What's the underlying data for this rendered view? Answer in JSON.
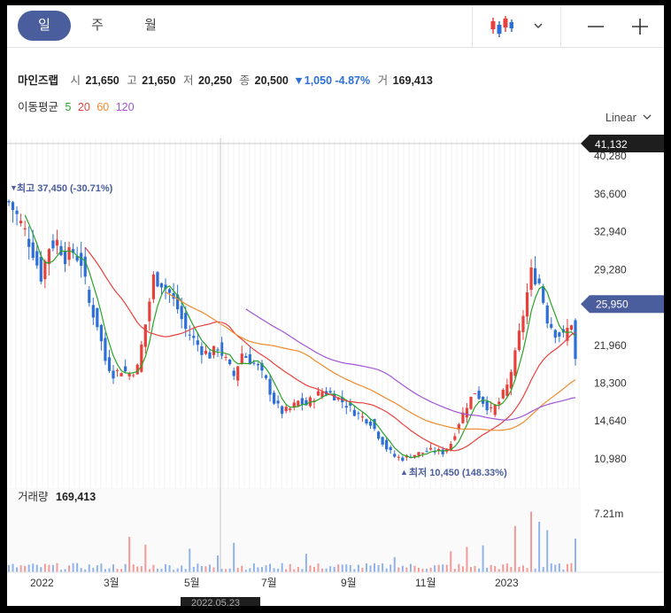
{
  "toolbar": {
    "period_tabs": [
      "일",
      "주",
      "월"
    ],
    "active_tab": 0,
    "chart_type_icon": "candlestick-icon",
    "dropdown_icon": "chevron-down-icon",
    "zoom_out_icon": "minus-icon",
    "zoom_in_icon": "plus-icon"
  },
  "stock": {
    "name": "마인즈랩",
    "open_label": "시",
    "open": "21,650",
    "high_label": "고",
    "high": "21,650",
    "low_label": "저",
    "low": "20,250",
    "close_label": "종",
    "close": "20,500",
    "change": "▼1,050 -4.87%",
    "volume_label": "거",
    "volume": "169,413"
  },
  "moving_average": {
    "label": "이동평균",
    "periods": [
      {
        "value": "5",
        "color": "#29a329"
      },
      {
        "value": "20",
        "color": "#e8413c"
      },
      {
        "value": "60",
        "color": "#f08a2c"
      },
      {
        "value": "120",
        "color": "#a155d6"
      }
    ]
  },
  "scale": {
    "label": "Linear"
  },
  "crosshair": {
    "price_label": "41,132",
    "date_label": "2022.05.23"
  },
  "current_price_label": "25,950",
  "volume_panel": {
    "label": "거래량",
    "value": "169,413",
    "max_label": "7.21m"
  },
  "colors": {
    "up": "#e8413c",
    "down": "#2d6fd6",
    "accent": "#4a5d9c",
    "crosshair_tag": "#1e1e1e"
  },
  "chart_data": {
    "type": "candlestick",
    "ylim": [
      9000,
      42000
    ],
    "y_ticks": [
      "40,280",
      "36,600",
      "32,940",
      "29,280",
      "25,620",
      "21,960",
      "18,300",
      "14,640",
      "10,980"
    ],
    "y_tick_values": [
      40280,
      36600,
      32940,
      29280,
      25620,
      21960,
      18300,
      14640,
      10980
    ],
    "x_labels": [
      "2022",
      "3월",
      "5월",
      "7월",
      "9월",
      "11월",
      "2023"
    ],
    "high_annotation": "최고 37,450 (-30.71%)",
    "low_annotation": "최저 10,450 (148.33%)",
    "high": 37450,
    "low": 10450,
    "close_path": [
      [
        0,
        35800
      ],
      [
        2,
        34500
      ],
      [
        4,
        33000
      ],
      [
        6,
        31000
      ],
      [
        8,
        28600
      ],
      [
        10,
        31500
      ],
      [
        12,
        32000
      ],
      [
        14,
        30500
      ],
      [
        16,
        31000
      ],
      [
        18,
        30000
      ],
      [
        20,
        26000
      ],
      [
        22,
        24000
      ],
      [
        24,
        20500
      ],
      [
        26,
        19200
      ],
      [
        28,
        19600
      ],
      [
        30,
        19200
      ],
      [
        32,
        19800
      ],
      [
        34,
        24000
      ],
      [
        36,
        28500
      ],
      [
        38,
        28000
      ],
      [
        40,
        27000
      ],
      [
        42,
        25500
      ],
      [
        44,
        23500
      ],
      [
        46,
        22500
      ],
      [
        48,
        21500
      ],
      [
        50,
        21000
      ],
      [
        52,
        21800
      ],
      [
        54,
        20500
      ],
      [
        56,
        19000
      ],
      [
        58,
        21200
      ],
      [
        60,
        20500
      ],
      [
        62,
        19800
      ],
      [
        64,
        18500
      ],
      [
        66,
        16500
      ],
      [
        68,
        15500
      ],
      [
        70,
        15800
      ],
      [
        72,
        16500
      ],
      [
        74,
        16200
      ],
      [
        76,
        17000
      ],
      [
        78,
        17500
      ],
      [
        80,
        17300
      ],
      [
        82,
        16800
      ],
      [
        84,
        16200
      ],
      [
        86,
        15500
      ],
      [
        88,
        15000
      ],
      [
        90,
        14500
      ],
      [
        92,
        13200
      ],
      [
        94,
        12000
      ],
      [
        96,
        11200
      ],
      [
        98,
        11000
      ],
      [
        100,
        11300
      ],
      [
        102,
        11500
      ],
      [
        104,
        11700
      ],
      [
        106,
        11800
      ],
      [
        108,
        11600
      ],
      [
        110,
        12500
      ],
      [
        112,
        14500
      ],
      [
        114,
        16200
      ],
      [
        116,
        17500
      ],
      [
        118,
        16500
      ],
      [
        120,
        15600
      ],
      [
        122,
        16500
      ],
      [
        124,
        18000
      ],
      [
        126,
        21000
      ],
      [
        128,
        25000
      ],
      [
        130,
        29000
      ],
      [
        132,
        28000
      ],
      [
        134,
        24500
      ],
      [
        136,
        23200
      ],
      [
        138,
        22800
      ],
      [
        140,
        24200
      ],
      [
        141,
        20500
      ]
    ],
    "volume_peaks": [
      [
        30,
        0.42
      ],
      [
        34,
        0.33
      ],
      [
        45,
        0.28
      ],
      [
        52,
        0.2
      ],
      [
        56,
        0.35
      ],
      [
        74,
        0.22
      ],
      [
        96,
        0.18
      ],
      [
        110,
        0.25
      ],
      [
        114,
        0.3
      ],
      [
        118,
        0.32
      ],
      [
        126,
        0.55
      ],
      [
        130,
        0.72
      ],
      [
        132,
        0.6
      ],
      [
        134,
        0.5
      ],
      [
        141,
        0.4
      ]
    ]
  }
}
